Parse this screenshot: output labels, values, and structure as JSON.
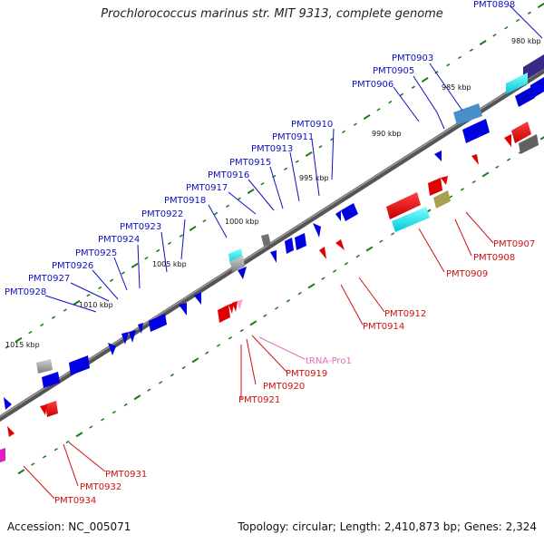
{
  "title": "Prochlorococcus marinus str. MIT 9313, complete genome",
  "footer": {
    "accession": "Accession: NC_005071",
    "topology": "Topology: circular; Length: 2,410,873 bp; Genes: 2,324"
  },
  "colors": {
    "backbone": "#555555",
    "tick": "#1a7a1a",
    "forward_label": "#1010c0",
    "reverse_label": "#d01010",
    "rna_label": "#e070b0"
  },
  "kbp_labels": [
    "980 kbp",
    "985 kbp",
    "990 kbp",
    "995 kbp",
    "1000 kbp",
    "1005 kbp",
    "1010 kbp",
    "1015 kbp"
  ],
  "genes_forward": [
    "PMT0898",
    "PMT0903",
    "PMT0905",
    "PMT0906",
    "PMT0910",
    "PMT0911",
    "PMT0913",
    "PMT0915",
    "PMT0916",
    "PMT0917",
    "PMT0918",
    "PMT0922",
    "PMT0923",
    "PMT0924",
    "PMT0925",
    "PMT0926",
    "PMT0927",
    "PMT0928"
  ],
  "genes_reverse": [
    "PMT0907",
    "PMT0908",
    "PMT0909",
    "PMT0912",
    "PMT0914",
    "PMT0919",
    "PMT0920",
    "PMT0921",
    "PMT0931",
    "PMT0932",
    "PMT0934"
  ],
  "rna_genes": [
    "tRNA-Pro1"
  ]
}
